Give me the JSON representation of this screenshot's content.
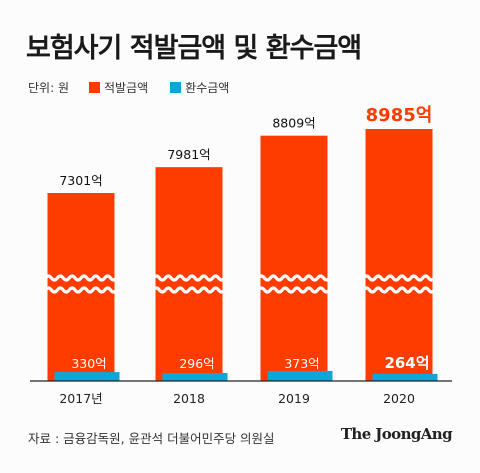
{
  "title": "보험사기 적발금액 및 환수금액",
  "legend": {
    "unit": "단위: 원",
    "items": [
      {
        "label": "적발금액",
        "color": "#ff3c00"
      },
      {
        "label": "환수금액",
        "color": "#10a5d9"
      }
    ]
  },
  "chart_data": {
    "type": "bar",
    "categories": [
      "2017년",
      "2018",
      "2019",
      "2020"
    ],
    "series": [
      {
        "name": "적발금액",
        "color": "#ff3c00",
        "values": [
          7301,
          7981,
          8809,
          8985
        ],
        "labels": [
          "7301억",
          "7981억",
          "8809억",
          "8985억"
        ]
      },
      {
        "name": "환수금액",
        "color": "#10a5d9",
        "values": [
          330,
          296,
          373,
          264
        ],
        "labels": [
          "330억",
          "296억",
          "373억",
          "264억"
        ]
      }
    ],
    "axis_break": true,
    "highlight_last": true
  },
  "footer": {
    "source": "자료 : 금융감독원, 윤관석 더불어민주당 의원실",
    "brand": "The JoongAng"
  }
}
